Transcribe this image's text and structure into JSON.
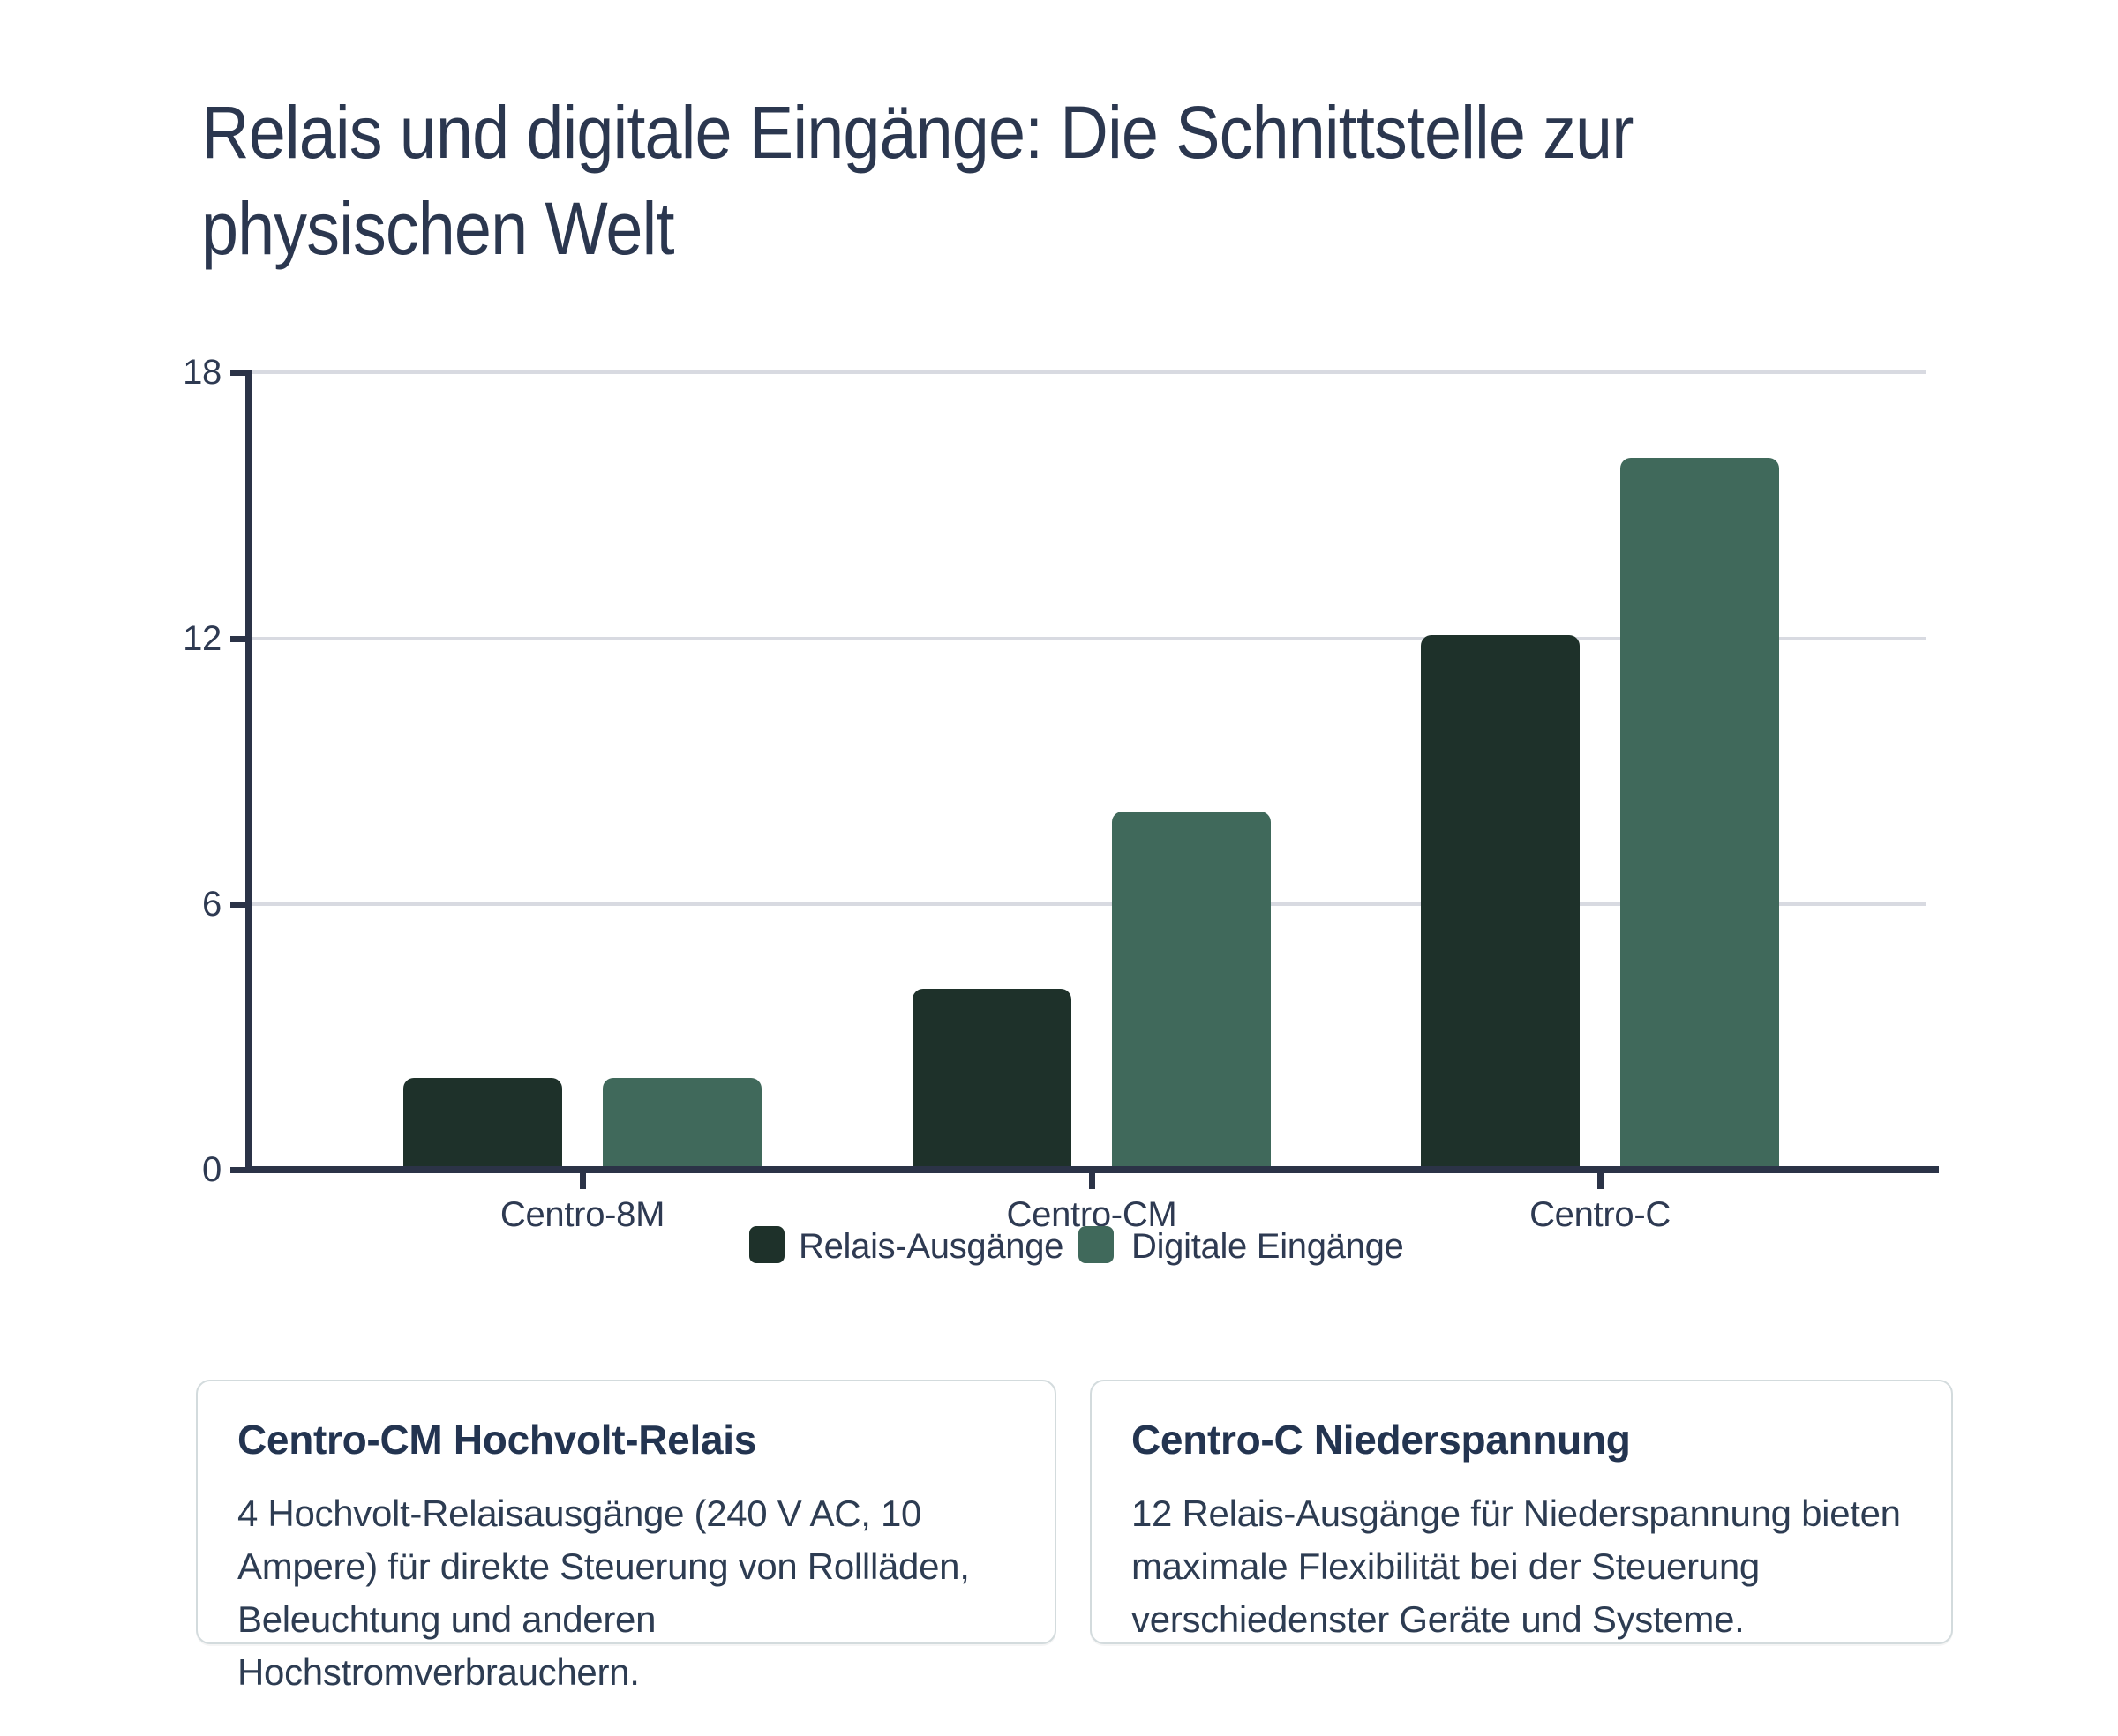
{
  "title": {
    "line1": "Relais und digitale Eingänge: Die Schnittstelle zur",
    "line2": "physischen Welt"
  },
  "chart_data": {
    "type": "bar",
    "categories": [
      "Centro-8M",
      "Centro-CM",
      "Centro-C"
    ],
    "series": [
      {
        "name": "Relais-Ausgänge",
        "color": "#1e312a",
        "values": [
          2,
          4,
          12
        ]
      },
      {
        "name": "Digitale Eingänge",
        "color": "#40695b",
        "values": [
          2,
          8,
          16
        ]
      }
    ],
    "ylabel": "",
    "xlabel": "",
    "ylim": [
      0,
      18
    ],
    "yticks": [
      0,
      6,
      12,
      18
    ],
    "grid": true,
    "legend_position": "bottom-center"
  },
  "cards": [
    {
      "title": "Centro-CM Hochvolt-Relais",
      "body": "4 Hochvolt-Relaisausgänge (240 V AC, 10 Ampere) für direkte Steuerung von Rollläden, Beleuchtung und anderen Hochstromverbrauchern."
    },
    {
      "title": "Centro-C Niederspannung",
      "body": "12 Relais-Ausgänge für Niederspannung bieten maximale Flexibilität bei der Steuerung verschiedenster Geräte und Systeme."
    }
  ],
  "colors": {
    "title_text": "#2b374f",
    "axis": "#2b3347",
    "gridline": "#d8dae1",
    "tick_label": "#2e3a52",
    "card_border": "#d3dbdd",
    "background": "#ffffff"
  }
}
